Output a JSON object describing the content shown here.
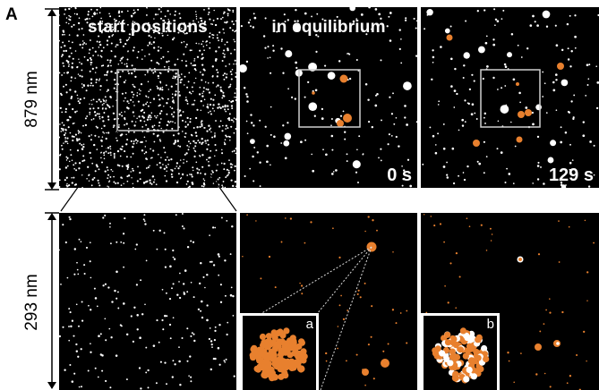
{
  "figure": {
    "panel_letter": "A",
    "scale_top": "879 nm",
    "scale_bottom": "293 nm",
    "col1_title": "start positions",
    "col2_title": "in equilibrium",
    "time_col2": "0 s",
    "time_col3": "129 s",
    "inset_a_label": "a",
    "inset_b_label": "b"
  },
  "colors": {
    "background": "#000000",
    "particle_white": "#ffffff",
    "particle_orange": "#e8802e",
    "zoom_box": "#cfcfcf"
  }
}
